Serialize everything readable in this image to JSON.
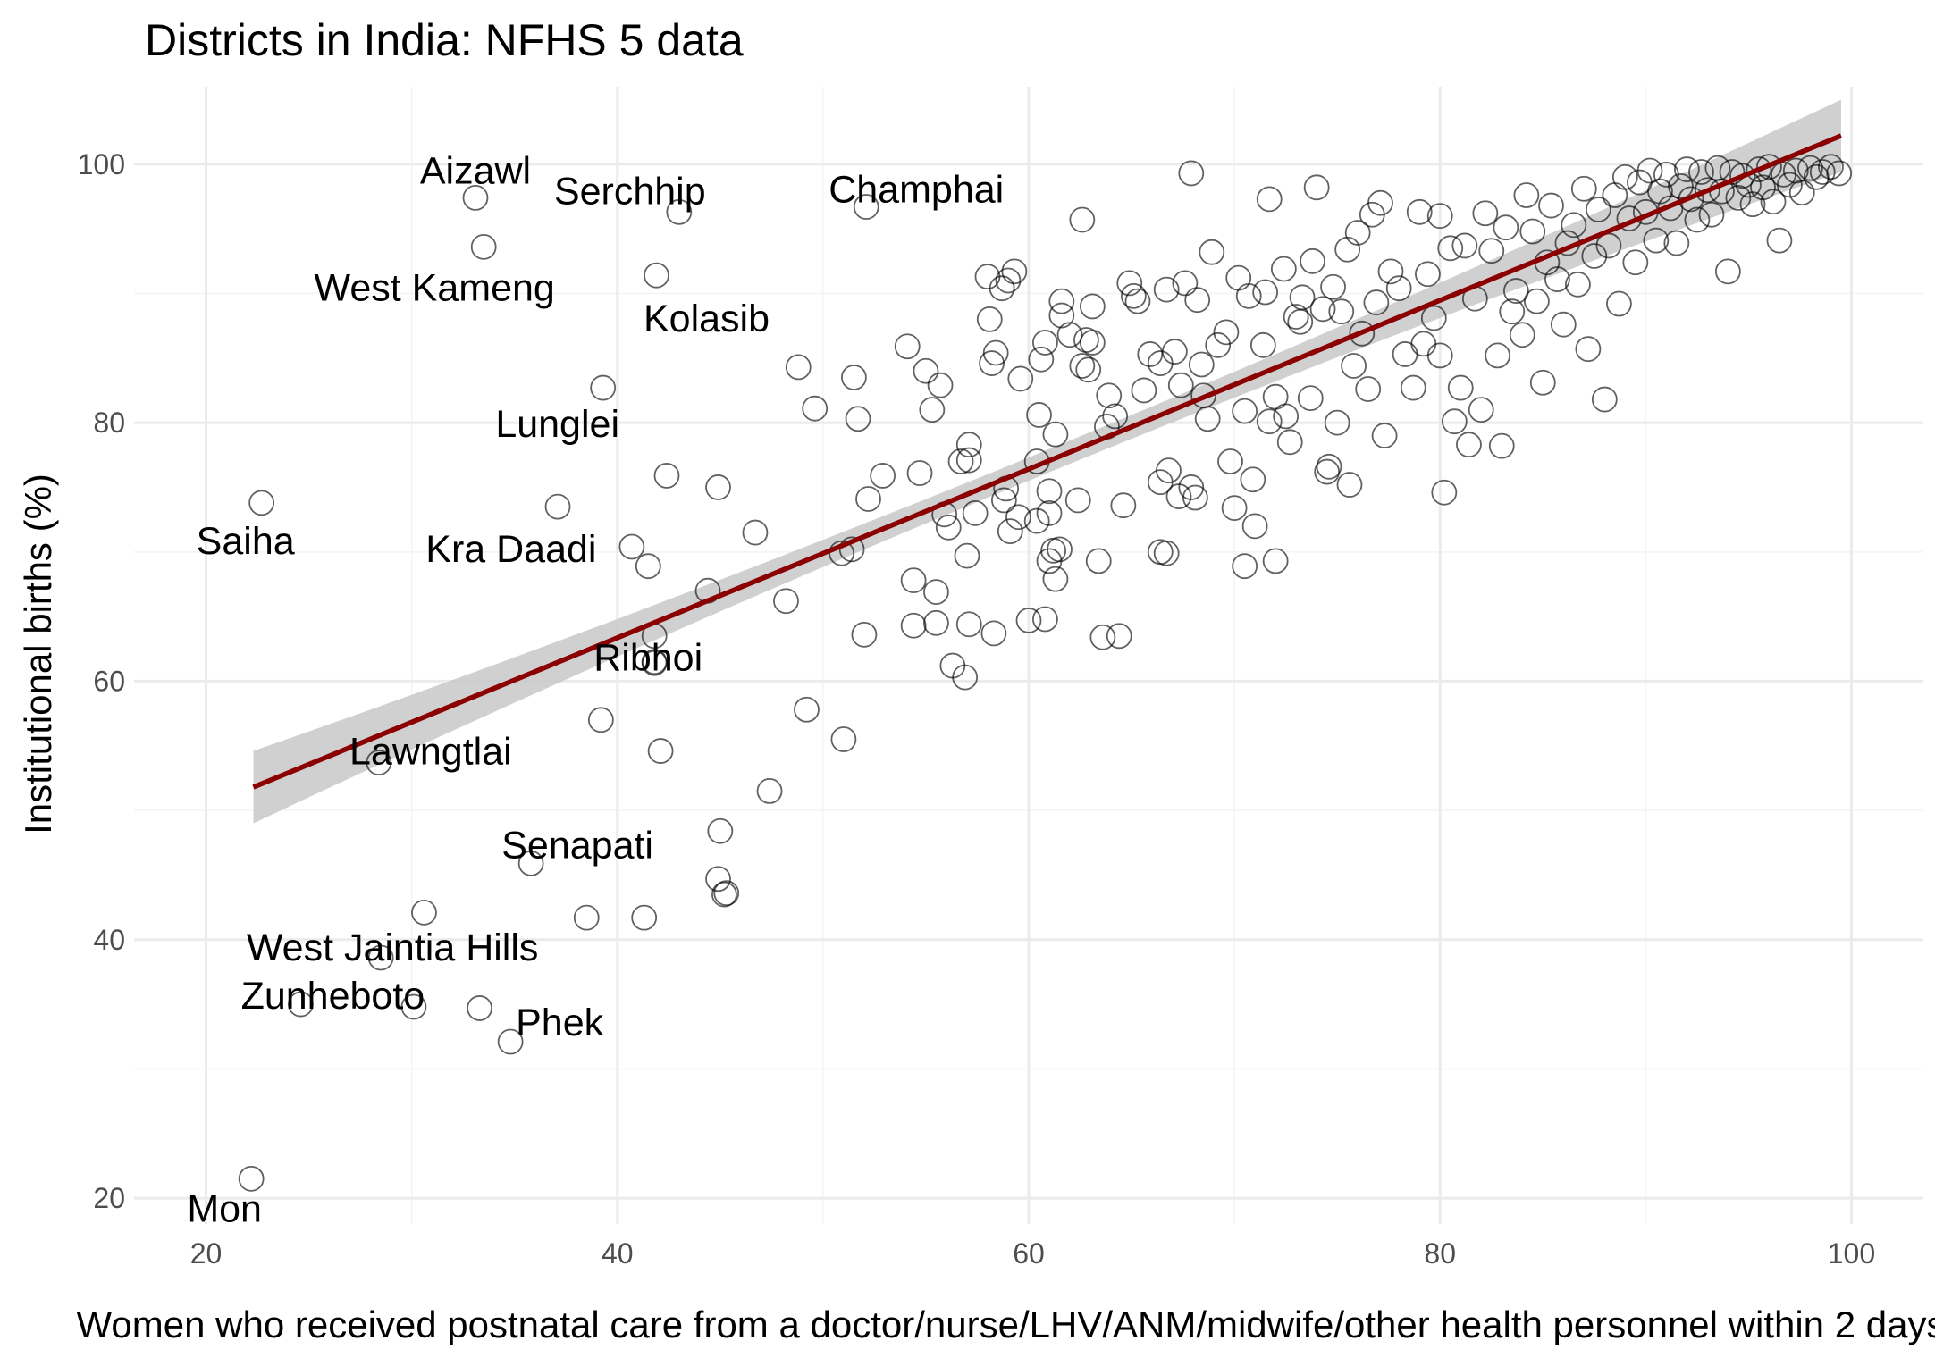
{
  "chart_data": {
    "type": "scatter",
    "title": "Districts in India: NFHS 5 data",
    "xlabel": "Women who received postnatal care from a doctor/nurse/LHV/ANM/midwife/other health personnel within 2 days",
    "ylabel": "Institutional births (%)",
    "xlim": [
      16.5,
      103.5
    ],
    "ylim": [
      18,
      106
    ],
    "x_ticks": [
      20,
      40,
      60,
      80,
      100
    ],
    "y_ticks": [
      20,
      40,
      60,
      80,
      100
    ],
    "grid": true,
    "point_style": "hollow circle",
    "colors": {
      "point": "#000000",
      "trend_line": "#8b0000",
      "confidence_band": "#c8c8c8",
      "grid": "#ebebeb"
    },
    "trend": {
      "method": "linear",
      "x_range": [
        22.3,
        99.5
      ],
      "y_start": 51.8,
      "y_end": 102.2,
      "se_band": true
    },
    "labeled_points": [
      {
        "label": "Aizawl",
        "x": 33.1,
        "y": 97.4
      },
      {
        "label": "Serchhip",
        "x": 43.0,
        "y": 96.3
      },
      {
        "label": "Champhai",
        "x": 52.1,
        "y": 96.7
      },
      {
        "label": "West Kameng",
        "x": 33.5,
        "y": 93.6
      },
      {
        "label": "Kolasib",
        "x": 41.9,
        "y": 91.4
      },
      {
        "label": "Lunglei",
        "x": 39.3,
        "y": 82.7
      },
      {
        "label": "Saiha",
        "x": 22.7,
        "y": 73.8
      },
      {
        "label": "Kra Daadi",
        "x": 40.7,
        "y": 70.4
      },
      {
        "label": "Ribhoi",
        "x": 41.8,
        "y": 61.5
      },
      {
        "label": "Lawngtlai",
        "x": 28.4,
        "y": 53.7
      },
      {
        "label": "Senapati",
        "x": 35.8,
        "y": 45.9
      },
      {
        "label": "West Jaintia Hills",
        "x": 28.5,
        "y": 38.6
      },
      {
        "label": "Zunheboto",
        "x": 24.6,
        "y": 35.0
      },
      {
        "label": "Phek",
        "x": 34.8,
        "y": 32.1
      },
      {
        "label": "Mon",
        "x": 22.2,
        "y": 21.5
      }
    ],
    "points": [
      [
        33.1,
        97.4
      ],
      [
        43.0,
        96.3
      ],
      [
        52.1,
        96.7
      ],
      [
        33.5,
        93.6
      ],
      [
        41.9,
        91.4
      ],
      [
        39.3,
        82.7
      ],
      [
        22.7,
        73.8
      ],
      [
        40.7,
        70.4
      ],
      [
        41.8,
        61.5
      ],
      [
        28.4,
        53.7
      ],
      [
        35.8,
        45.9
      ],
      [
        28.5,
        38.6
      ],
      [
        24.6,
        35.0
      ],
      [
        34.8,
        32.1
      ],
      [
        22.2,
        21.5
      ],
      [
        37.1,
        73.5
      ],
      [
        30.6,
        42.1
      ],
      [
        30.1,
        34.8
      ],
      [
        33.3,
        34.7
      ],
      [
        38.5,
        41.7
      ],
      [
        41.3,
        41.7
      ],
      [
        39.2,
        57.0
      ],
      [
        42.1,
        54.6
      ],
      [
        41.5,
        68.9
      ],
      [
        41.8,
        63.5
      ],
      [
        41.8,
        61.4
      ],
      [
        42.4,
        75.9
      ],
      [
        44.4,
        67.0
      ],
      [
        44.9,
        75.0
      ],
      [
        44.9,
        44.7
      ],
      [
        45.0,
        48.4
      ],
      [
        45.2,
        43.5
      ],
      [
        45.3,
        43.6
      ],
      [
        46.7,
        71.5
      ],
      [
        47.4,
        51.5
      ],
      [
        48.2,
        66.2
      ],
      [
        48.8,
        84.3
      ],
      [
        49.2,
        57.8
      ],
      [
        49.6,
        81.1
      ],
      [
        51.0,
        55.5
      ],
      [
        50.9,
        69.9
      ],
      [
        51.4,
        70.2
      ],
      [
        51.5,
        83.5
      ],
      [
        51.7,
        80.3
      ],
      [
        52.0,
        63.6
      ],
      [
        52.2,
        74.1
      ],
      [
        52.9,
        75.9
      ],
      [
        54.1,
        85.9
      ],
      [
        54.4,
        67.8
      ],
      [
        54.4,
        64.3
      ],
      [
        54.7,
        76.1
      ],
      [
        55.0,
        84.0
      ],
      [
        55.3,
        81.0
      ],
      [
        55.5,
        64.5
      ],
      [
        55.5,
        66.9
      ],
      [
        55.7,
        82.9
      ],
      [
        55.9,
        72.9
      ],
      [
        56.1,
        71.9
      ],
      [
        56.3,
        61.2
      ],
      [
        56.7,
        77.0
      ],
      [
        56.9,
        60.3
      ],
      [
        57.0,
        69.7
      ],
      [
        57.1,
        64.4
      ],
      [
        57.1,
        78.3
      ],
      [
        57.1,
        77.1
      ],
      [
        57.4,
        73.0
      ],
      [
        58.0,
        91.3
      ],
      [
        58.1,
        88.0
      ],
      [
        58.2,
        84.6
      ],
      [
        58.3,
        63.7
      ],
      [
        58.4,
        85.4
      ],
      [
        58.7,
        90.4
      ],
      [
        58.8,
        74.0
      ],
      [
        58.9,
        74.9
      ],
      [
        59.0,
        91.0
      ],
      [
        59.1,
        71.6
      ],
      [
        59.3,
        91.7
      ],
      [
        59.5,
        72.7
      ],
      [
        59.6,
        83.4
      ],
      [
        60.0,
        64.7
      ],
      [
        60.4,
        72.4
      ],
      [
        60.4,
        77.0
      ],
      [
        60.5,
        80.6
      ],
      [
        60.6,
        84.9
      ],
      [
        60.8,
        86.2
      ],
      [
        60.8,
        64.8
      ],
      [
        61.0,
        73.0
      ],
      [
        61.0,
        69.3
      ],
      [
        61.0,
        74.7
      ],
      [
        61.2,
        70.1
      ],
      [
        61.3,
        79.1
      ],
      [
        61.3,
        67.9
      ],
      [
        61.5,
        70.2
      ],
      [
        61.6,
        89.4
      ],
      [
        61.6,
        88.3
      ],
      [
        62.0,
        86.8
      ],
      [
        62.4,
        74.0
      ],
      [
        62.6,
        95.7
      ],
      [
        62.6,
        84.4
      ],
      [
        62.8,
        86.4
      ],
      [
        62.9,
        84.1
      ],
      [
        63.1,
        89.0
      ],
      [
        63.1,
        86.2
      ],
      [
        63.4,
        69.3
      ],
      [
        63.6,
        63.4
      ],
      [
        63.8,
        79.7
      ],
      [
        63.9,
        82.1
      ],
      [
        64.2,
        80.5
      ],
      [
        64.4,
        63.5
      ],
      [
        64.6,
        73.6
      ],
      [
        64.9,
        90.8
      ],
      [
        65.1,
        89.8
      ],
      [
        65.3,
        89.4
      ],
      [
        65.6,
        82.5
      ],
      [
        65.9,
        85.3
      ],
      [
        66.4,
        75.4
      ],
      [
        66.4,
        84.6
      ],
      [
        66.4,
        70.0
      ],
      [
        66.7,
        90.3
      ],
      [
        66.7,
        69.9
      ],
      [
        66.8,
        76.3
      ],
      [
        67.1,
        85.5
      ],
      [
        67.3,
        74.3
      ],
      [
        67.4,
        82.9
      ],
      [
        67.6,
        90.8
      ],
      [
        67.9,
        75.0
      ],
      [
        67.9,
        99.3
      ],
      [
        68.1,
        74.2
      ],
      [
        68.2,
        89.5
      ],
      [
        68.4,
        84.5
      ],
      [
        68.5,
        82.1
      ],
      [
        68.7,
        80.3
      ],
      [
        68.9,
        93.2
      ],
      [
        69.2,
        86.0
      ],
      [
        69.6,
        87.0
      ],
      [
        69.8,
        77.0
      ],
      [
        70.0,
        73.4
      ],
      [
        70.2,
        91.2
      ],
      [
        70.5,
        80.9
      ],
      [
        70.5,
        68.9
      ],
      [
        70.7,
        89.8
      ],
      [
        70.9,
        75.6
      ],
      [
        71.0,
        72.0
      ],
      [
        71.4,
        86.0
      ],
      [
        71.5,
        90.1
      ],
      [
        71.7,
        80.1
      ],
      [
        71.7,
        97.3
      ],
      [
        72.0,
        82.0
      ],
      [
        72.0,
        69.3
      ],
      [
        72.4,
        91.9
      ],
      [
        72.5,
        80.5
      ],
      [
        72.7,
        78.5
      ],
      [
        73.0,
        88.2
      ],
      [
        73.2,
        87.8
      ],
      [
        73.3,
        89.7
      ],
      [
        73.7,
        81.9
      ],
      [
        73.8,
        92.5
      ],
      [
        74.0,
        98.2
      ],
      [
        74.3,
        88.8
      ],
      [
        74.5,
        76.2
      ],
      [
        74.6,
        76.6
      ],
      [
        74.8,
        90.5
      ],
      [
        75.0,
        80.0
      ],
      [
        75.2,
        88.6
      ],
      [
        75.5,
        93.4
      ],
      [
        75.6,
        75.2
      ],
      [
        75.8,
        84.4
      ],
      [
        76.0,
        94.7
      ],
      [
        76.2,
        86.9
      ],
      [
        76.5,
        82.6
      ],
      [
        76.7,
        96.1
      ],
      [
        76.9,
        89.3
      ],
      [
        77.1,
        97.0
      ],
      [
        77.3,
        79.0
      ],
      [
        77.6,
        91.7
      ],
      [
        78.0,
        90.4
      ],
      [
        78.3,
        85.3
      ],
      [
        78.7,
        82.7
      ],
      [
        79.0,
        96.3
      ],
      [
        79.2,
        86.1
      ],
      [
        79.4,
        91.5
      ],
      [
        79.7,
        88.1
      ],
      [
        80.0,
        96.0
      ],
      [
        80.0,
        85.2
      ],
      [
        80.2,
        74.6
      ],
      [
        80.5,
        93.5
      ],
      [
        80.7,
        80.1
      ],
      [
        81.0,
        82.7
      ],
      [
        81.2,
        93.7
      ],
      [
        81.4,
        78.3
      ],
      [
        81.7,
        89.6
      ],
      [
        82.0,
        81.0
      ],
      [
        82.2,
        96.2
      ],
      [
        82.5,
        93.3
      ],
      [
        82.8,
        85.2
      ],
      [
        83.0,
        78.2
      ],
      [
        83.2,
        95.1
      ],
      [
        83.5,
        88.6
      ],
      [
        83.7,
        90.2
      ],
      [
        84.0,
        86.8
      ],
      [
        84.2,
        97.6
      ],
      [
        84.5,
        94.8
      ],
      [
        84.7,
        89.4
      ],
      [
        85.0,
        83.1
      ],
      [
        85.2,
        92.4
      ],
      [
        85.4,
        96.8
      ],
      [
        85.7,
        91.1
      ],
      [
        86.0,
        87.6
      ],
      [
        86.2,
        93.9
      ],
      [
        86.5,
        95.3
      ],
      [
        86.7,
        90.7
      ],
      [
        87.0,
        98.1
      ],
      [
        87.2,
        85.7
      ],
      [
        87.5,
        92.9
      ],
      [
        87.7,
        96.5
      ],
      [
        88.0,
        81.8
      ],
      [
        88.2,
        93.7
      ],
      [
        88.5,
        97.6
      ],
      [
        88.7,
        89.2
      ],
      [
        89.0,
        99.0
      ],
      [
        89.2,
        95.8
      ],
      [
        89.5,
        92.4
      ],
      [
        89.7,
        98.6
      ],
      [
        90.0,
        96.3
      ],
      [
        90.2,
        99.5
      ],
      [
        90.5,
        94.1
      ],
      [
        90.7,
        97.9
      ],
      [
        91.0,
        99.2
      ],
      [
        91.2,
        96.6
      ],
      [
        91.5,
        93.9
      ],
      [
        91.7,
        98.3
      ],
      [
        92.0,
        99.6
      ],
      [
        92.2,
        97.3
      ],
      [
        92.5,
        95.7
      ],
      [
        92.7,
        99.4
      ],
      [
        93.0,
        98.0
      ],
      [
        93.2,
        96.1
      ],
      [
        93.5,
        99.7
      ],
      [
        93.7,
        97.9
      ],
      [
        94.0,
        91.7
      ],
      [
        94.2,
        99.4
      ],
      [
        94.5,
        97.4
      ],
      [
        94.7,
        99.1
      ],
      [
        95.0,
        98.4
      ],
      [
        95.2,
        96.9
      ],
      [
        95.5,
        99.6
      ],
      [
        95.7,
        98.2
      ],
      [
        96.0,
        99.8
      ],
      [
        96.2,
        97.1
      ],
      [
        96.5,
        94.1
      ],
      [
        96.7,
        99.2
      ],
      [
        97.0,
        98.4
      ],
      [
        97.3,
        99.5
      ],
      [
        97.6,
        97.8
      ],
      [
        98.0,
        99.7
      ],
      [
        98.3,
        99.0
      ],
      [
        98.6,
        99.4
      ],
      [
        99.0,
        99.8
      ],
      [
        99.4,
        99.3
      ]
    ]
  }
}
